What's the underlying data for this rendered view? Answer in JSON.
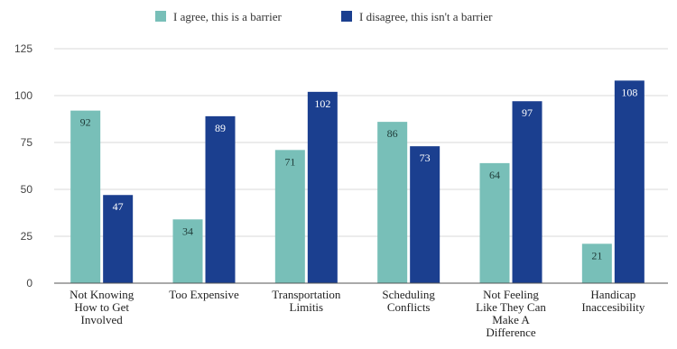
{
  "chart_data": {
    "type": "bar",
    "categories": [
      [
        "Not Knowing",
        "How to Get",
        "Involved"
      ],
      [
        "Too Expensive"
      ],
      [
        "Transportation",
        "Limitis"
      ],
      [
        "Scheduling",
        "Conflicts"
      ],
      [
        "Not Feeling",
        "Like They Can",
        "Make A",
        "Difference"
      ],
      [
        "Handicap",
        "Inaccesibility"
      ]
    ],
    "series": [
      {
        "name": "I agree, this is a barrier",
        "values": [
          92,
          34,
          71,
          86,
          64,
          21
        ],
        "color": "#78bfb8",
        "label_color": "#1f3b38"
      },
      {
        "name": "I disagree, this isn't a barrier",
        "values": [
          47,
          89,
          102,
          73,
          97,
          108
        ],
        "color": "#1b3f8f",
        "label_color": "#ffffff"
      }
    ],
    "yticks": [
      0,
      25,
      50,
      75,
      100,
      125
    ],
    "ylim": [
      0,
      125
    ],
    "grid": true,
    "legend": "top-center",
    "data_labels": true
  }
}
